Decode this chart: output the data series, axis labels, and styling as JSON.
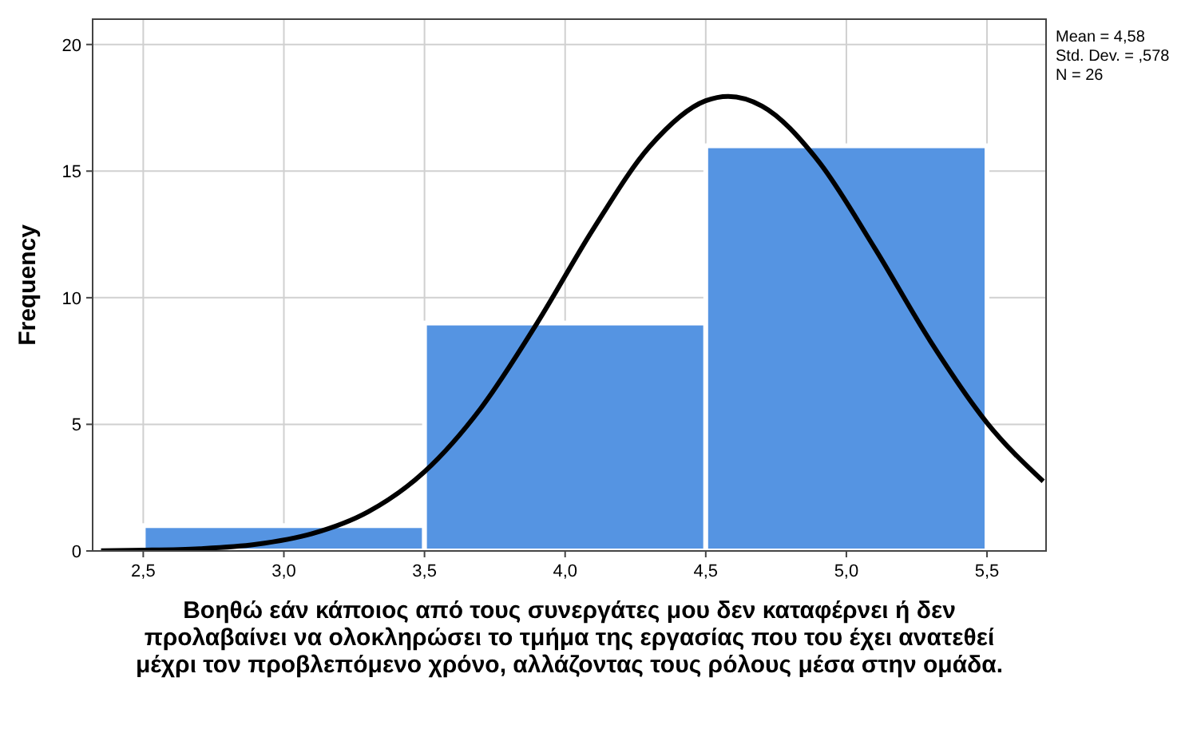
{
  "chart_data": {
    "type": "histogram",
    "xlabel": "Βοηθώ εάν κάποιος από τους συνεργάτες μου δεν καταφέρνει ή δεν προλαβαίνει να ολοκληρώσει το τμήμα της εργασίας που του έχει ανατεθεί μέχρι τον προβλεπόμενο χρόνο, αλλάζοντας τους ρόλους μέσα στην ομάδα.",
    "ylabel": "Frequency",
    "annotations": [
      "Mean = 4,58",
      "Std. Dev. = ,578",
      "N = 26"
    ],
    "bins": [
      2.5,
      3.5,
      4.5,
      5.5
    ],
    "series": [
      {
        "color": "#5594e2",
        "values": [
          1,
          9,
          16
        ]
      },
      {
        "type": "line",
        "color": "#000000",
        "x": [
          2.35,
          2.5,
          2.7,
          2.9,
          3.1,
          3.3,
          3.5,
          3.7,
          3.9,
          4.1,
          4.3,
          4.5,
          4.58,
          4.7,
          4.9,
          5.1,
          5.3,
          5.5,
          5.7
        ],
        "values": [
          0.01,
          0.03,
          0.09,
          0.26,
          0.68,
          1.55,
          3.13,
          5.63,
          8.99,
          12.71,
          15.96,
          17.78,
          17.95,
          17.57,
          15.4,
          11.97,
          8.26,
          5.06,
          2.75
        ]
      }
    ],
    "xlim": [
      2.32,
      5.71
    ],
    "xticks": [
      {
        "value": 2.5,
        "label": "2,5"
      },
      {
        "value": 3,
        "label": "3,0"
      },
      {
        "value": 3.5,
        "label": "3,5"
      },
      {
        "value": 4,
        "label": "4,0"
      },
      {
        "value": 4.5,
        "label": "4,5"
      },
      {
        "value": 5,
        "label": "5,0"
      },
      {
        "value": 5.5,
        "label": "5,5"
      }
    ],
    "ylim": [
      0,
      21
    ],
    "yticks": [
      0,
      5,
      10,
      15,
      20
    ],
    "grid": true,
    "marker": "none",
    "line_style": "solid"
  }
}
